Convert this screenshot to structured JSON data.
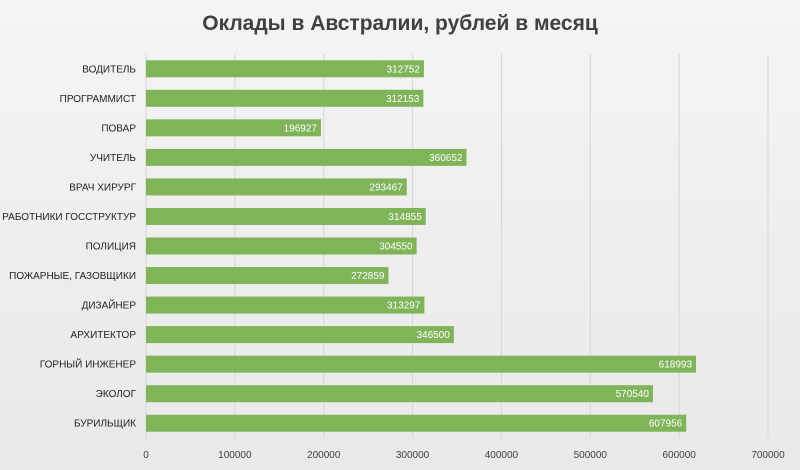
{
  "chart_data": {
    "type": "bar",
    "orientation": "horizontal",
    "title": "Оклады в Австралии, рублей в месяц",
    "categories": [
      "ВОДИТЕЛЬ",
      "ПРОГРАММИСТ",
      "ПОВАР",
      "УЧИТЕЛЬ",
      "ВРАЧ ХИРУРГ",
      "РАБОТНИКИ ГОССТРУКТУР",
      "ПОЛИЦИЯ",
      "ПОЖАРНЫЕ, ГАЗОВЩИКИ",
      "ДИЗАЙНЕР",
      "АРХИТЕКТОР",
      "ГОРНЫЙ ИНЖЕНЕР",
      "ЭКОЛОГ",
      "БУРИЛЬЩИК"
    ],
    "values": [
      312752,
      312153,
      196927,
      360652,
      293467,
      314855,
      304550,
      272859,
      313297,
      346500,
      618993,
      570540,
      607956
    ],
    "data_labels": [
      "312752",
      "312153",
      "196927",
      "360652",
      "293467",
      "314855",
      "304550",
      "272859",
      "313297",
      "346500",
      "618993",
      "570540",
      "607956"
    ],
    "xlim": [
      0,
      700000
    ],
    "ticks": [
      0,
      100000,
      200000,
      300000,
      400000,
      500000,
      600000,
      700000
    ],
    "tick_labels": [
      "0",
      "100000",
      "200000",
      "300000",
      "400000",
      "500000",
      "600000",
      "700000"
    ],
    "bar_color": "#7fb458",
    "grid": true
  }
}
